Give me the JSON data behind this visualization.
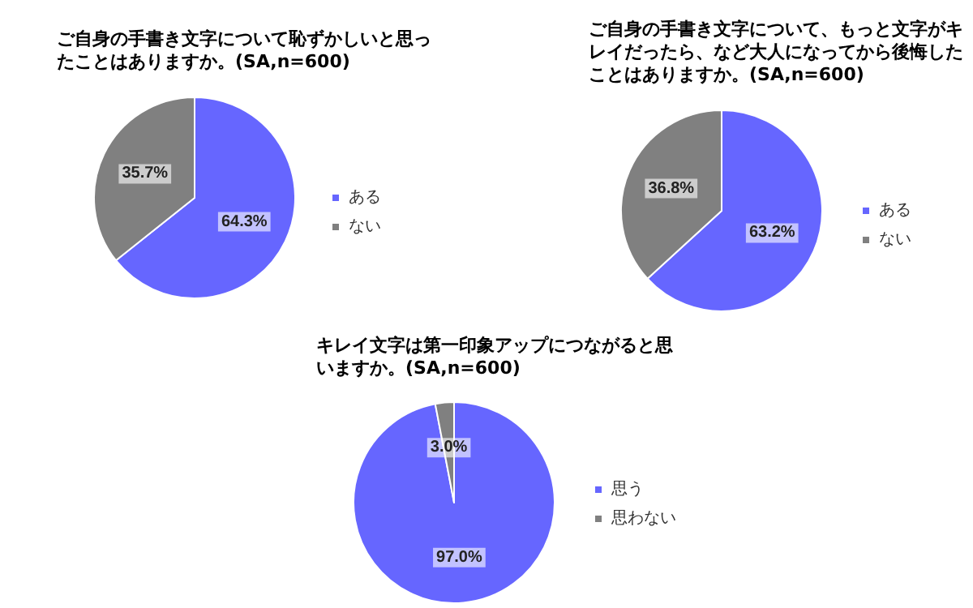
{
  "chart_data": [
    {
      "type": "pie",
      "title": "ご自身の手書き文字について恥ずかしいと思ったことはありますか。(SA,n=600)",
      "categories": [
        "ある",
        "ない"
      ],
      "values": [
        64.3,
        35.7
      ],
      "colors": [
        "#6666ff",
        "#808080"
      ],
      "value_labels": [
        "64.3%",
        "35.7%"
      ],
      "legend": "right"
    },
    {
      "type": "pie",
      "title": "ご自身の手書き文字について、もっと文字がキレイだったら、など大人になってから後悔したことはありますか。(SA,n=600)",
      "categories": [
        "ある",
        "ない"
      ],
      "values": [
        63.2,
        36.8
      ],
      "colors": [
        "#6666ff",
        "#808080"
      ],
      "value_labels": [
        "63.2%",
        "36.8%"
      ],
      "legend": "right"
    },
    {
      "type": "pie",
      "title": "キレイ文字は第一印象アップにつながると思いますか。(SA,n=600)",
      "categories": [
        "思う",
        "思わない"
      ],
      "values": [
        97.0,
        3.0
      ],
      "colors": [
        "#6666ff",
        "#808080"
      ],
      "value_labels": [
        "97.0%",
        "3.0%"
      ],
      "legend": "right"
    }
  ]
}
